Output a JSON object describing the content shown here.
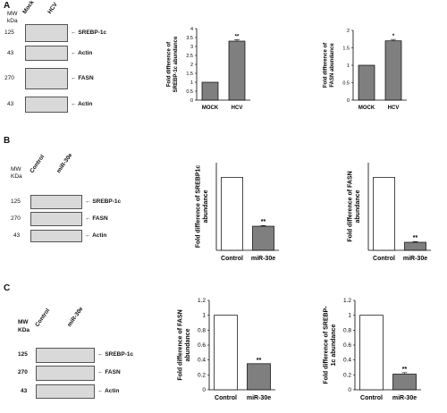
{
  "panels": [
    {
      "letter": "A",
      "mw_label": "MW",
      "kda_label": "kDa",
      "lanes": [
        "Mock",
        "HCV"
      ],
      "blot_rows": [
        {
          "mw": "125",
          "label": "SREBP-1c"
        },
        {
          "mw": "43",
          "label": "Actin"
        },
        {
          "mw": "270",
          "label": "FASN"
        },
        {
          "mw": "43",
          "label": "Actin"
        }
      ]
    },
    {
      "letter": "B",
      "mw_label": "MW",
      "kda_label": "KDa",
      "lanes": [
        "Control",
        "miR-30e"
      ],
      "blot_rows": [
        {
          "mw": "125",
          "label": "SREBP-1c"
        },
        {
          "mw": "270",
          "label": "FASN"
        },
        {
          "mw": "43",
          "label": "Actin"
        }
      ]
    },
    {
      "letter": "C",
      "mw_label": "MW",
      "kda_label": "KDa",
      "lanes": [
        "Control",
        "miR-30e"
      ],
      "blot_rows": [
        {
          "mw": "125",
          "label": "SREBP-1c"
        },
        {
          "mw": "270",
          "label": "FASN"
        },
        {
          "mw": "43",
          "label": "Actin"
        }
      ]
    }
  ],
  "chart_data": [
    {
      "type": "bar",
      "panel": "A",
      "categories": [
        "MOCK",
        "HCV"
      ],
      "values": [
        1,
        3.3
      ],
      "errors": [
        0,
        0.08
      ],
      "ylabel": "Fold difference of SREBP-1c abundance",
      "ylim": [
        0,
        4
      ],
      "yticks": [
        0,
        0.5,
        1,
        1.5,
        2,
        2.5,
        3,
        3.5,
        4
      ],
      "fills": [
        "#7f7f7f",
        "#7f7f7f"
      ],
      "sig": [
        "",
        "**"
      ]
    },
    {
      "type": "bar",
      "panel": "A",
      "categories": [
        "MOCK",
        "HCV"
      ],
      "values": [
        1,
        1.7
      ],
      "errors": [
        0,
        0.04
      ],
      "ylabel": "Fold difference of FASN abundance",
      "ylim": [
        0,
        2
      ],
      "yticks": [
        0,
        0.5,
        1,
        1.5,
        2
      ],
      "fills": [
        "#7f7f7f",
        "#7f7f7f"
      ],
      "sig": [
        "",
        "*"
      ]
    },
    {
      "type": "bar",
      "panel": "B",
      "categories": [
        "Control",
        "miR-30e"
      ],
      "values": [
        1,
        0.33
      ],
      "errors": [
        0,
        0.01
      ],
      "ylabel": "Fold difference of SREBP1c abundance",
      "ylim": [
        0,
        1.2
      ],
      "yticks": [],
      "fills": [
        "#ffffff",
        "#7f7f7f"
      ],
      "sig": [
        "",
        "**"
      ]
    },
    {
      "type": "bar",
      "panel": "B",
      "categories": [
        "Control",
        "miR-30e"
      ],
      "values": [
        1,
        0.11
      ],
      "errors": [
        0,
        0.01
      ],
      "ylabel": "Fold difference of FASN abundance",
      "ylim": [
        0,
        1.2
      ],
      "yticks": [],
      "fills": [
        "#ffffff",
        "#7f7f7f"
      ],
      "sig": [
        "",
        "**"
      ]
    },
    {
      "type": "bar",
      "panel": "C",
      "categories": [
        "Control",
        "miR-30e"
      ],
      "values": [
        1,
        0.35
      ],
      "errors": [
        0,
        0
      ],
      "ylabel": "Fold difference of FASN abundance",
      "ylim": [
        0,
        1.2
      ],
      "yticks": [
        0,
        0.2,
        0.4,
        0.6,
        0.8,
        1,
        1.2
      ],
      "fills": [
        "#ffffff",
        "#7f7f7f"
      ],
      "sig": [
        "",
        "**"
      ]
    },
    {
      "type": "bar",
      "panel": "C",
      "categories": [
        "Control",
        "miR-30e"
      ],
      "values": [
        1,
        0.21
      ],
      "errors": [
        0,
        0.02
      ],
      "ylabel": "Fold difference of SREBP-1c abundance",
      "ylim": [
        0,
        1.2
      ],
      "yticks": [
        0,
        0.2,
        0.4,
        0.6,
        0.8,
        1,
        1.2
      ],
      "fills": [
        "#ffffff",
        "#7f7f7f"
      ],
      "sig": [
        "",
        "**"
      ]
    }
  ]
}
